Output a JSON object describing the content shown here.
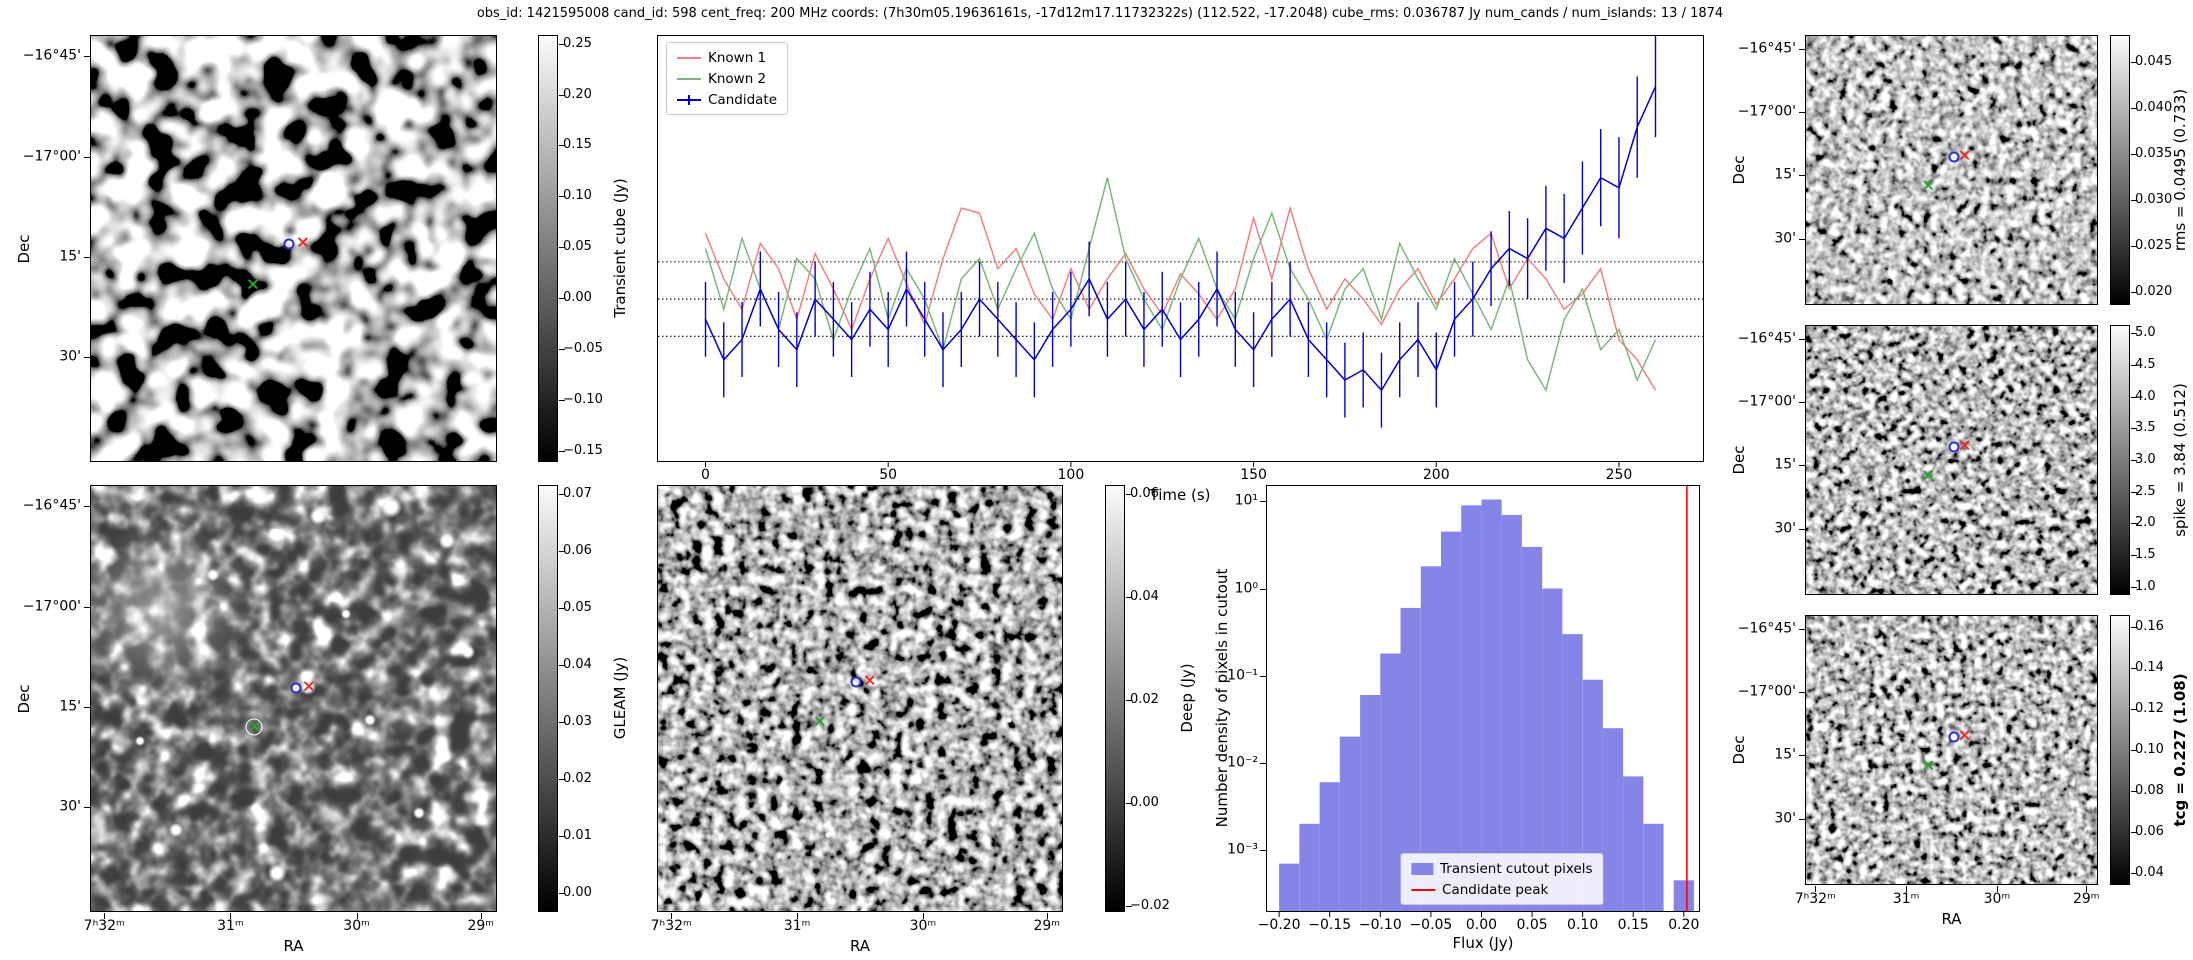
{
  "title": "obs_id: 1421595008 cand_id: 598 cent_freq: 200 MHz coords: (7h30m05.19636161s, -17d12m17.11732322s) (112.522, -17.2048) cube_rms: 0.036787 Jy num_cands / num_islands: 13 / 1874",
  "axes": {
    "dec_label": "Dec",
    "ra_label": "RA",
    "dec_ticks": [
      "−16°45'",
      "−17°00'",
      "15'",
      "30'"
    ],
    "ra_ticks": [
      "7ʰ32ᵐ",
      "31ᵐ",
      "30ᵐ",
      "29ᵐ"
    ]
  },
  "colorbars": {
    "transient": {
      "label": "Transient cube (Jy)",
      "ticks": [
        "0.25",
        "0.20",
        "0.15",
        "0.10",
        "0.05",
        "0.00",
        "−0.05",
        "−0.10",
        "−0.15"
      ]
    },
    "gleam": {
      "label": "GLEAM (Jy)",
      "ticks": [
        "0.07",
        "0.06",
        "0.05",
        "0.04",
        "0.03",
        "0.02",
        "0.01",
        "0.00"
      ]
    },
    "deep": {
      "label": "Deep (Jy)",
      "ticks": [
        "0.06",
        "0.04",
        "0.02",
        "0.00",
        "−0.02"
      ]
    },
    "rms": {
      "label": "rms = 0.0495 (0.733)",
      "ticks": [
        "0.045",
        "0.040",
        "0.035",
        "0.030",
        "0.025",
        "0.020"
      ]
    },
    "spike": {
      "label": "spike = 3.84 (0.512)",
      "ticks": [
        "5.0",
        "4.5",
        "4.0",
        "3.5",
        "3.0",
        "2.5",
        "2.0",
        "1.5",
        "1.0"
      ]
    },
    "tcg": {
      "label": "tcg = 0.227 (1.08)",
      "ticks": [
        "0.16",
        "0.14",
        "0.12",
        "0.10",
        "0.08",
        "0.06",
        "0.04"
      ]
    }
  },
  "markers": {
    "candidate_color": "#2b35c8",
    "known1_color": "#e03127",
    "known2_color": "#2fa32f"
  },
  "chart_data": [
    {
      "type": "line",
      "title": "",
      "xlabel": "Time (s)",
      "ylabel": "",
      "xlim": [
        -13,
        273
      ],
      "ylim": [
        -0.16,
        0.26
      ],
      "x_ticks": [
        0,
        50,
        100,
        150,
        200,
        250
      ],
      "hlines": [
        0.036787,
        0,
        -0.036787
      ],
      "legend_position": "upper left",
      "series": [
        {
          "name": "Known 1",
          "color": "#f08080",
          "x": [
            0,
            5,
            10,
            15,
            20,
            25,
            30,
            35,
            40,
            45,
            50,
            55,
            60,
            65,
            70,
            75,
            80,
            85,
            90,
            95,
            100,
            105,
            110,
            115,
            120,
            125,
            130,
            135,
            140,
            145,
            150,
            155,
            160,
            165,
            170,
            175,
            180,
            185,
            190,
            195,
            200,
            205,
            210,
            215,
            220,
            225,
            230,
            235,
            240,
            245,
            250,
            255,
            260
          ],
          "values": [
            0.065,
            0.02,
            -0.01,
            0.055,
            0.03,
            -0.02,
            0.045,
            0.01,
            -0.03,
            0.02,
            0.06,
            0.015,
            -0.025,
            0.04,
            0.09,
            0.085,
            0.03,
            0.05,
            0.005,
            -0.02,
            0.03,
            -0.01,
            0.02,
            0.045,
            0.01,
            -0.015,
            0.025,
            0.005,
            -0.02,
            0.01,
            0.08,
            0.02,
            0.09,
            0.03,
            -0.01,
            0.02,
            0.0,
            -0.025,
            0.01,
            0.03,
            -0.005,
            0.02,
            0.05,
            0.065,
            0.01,
            0.04,
            0.02,
            -0.01,
            0.005,
            0.03,
            -0.04,
            -0.06,
            -0.09
          ]
        },
        {
          "name": "Known 2",
          "color": "#7cb87c",
          "x": [
            0,
            5,
            10,
            15,
            20,
            25,
            30,
            35,
            40,
            45,
            50,
            55,
            60,
            65,
            70,
            75,
            80,
            85,
            90,
            95,
            100,
            105,
            110,
            115,
            120,
            125,
            130,
            135,
            140,
            145,
            150,
            155,
            160,
            165,
            170,
            175,
            180,
            185,
            190,
            195,
            200,
            205,
            210,
            215,
            220,
            225,
            230,
            235,
            240,
            245,
            250,
            255,
            260
          ],
          "values": [
            0.05,
            -0.01,
            0.06,
            0.01,
            -0.03,
            0.04,
            0.02,
            -0.04,
            0.01,
            0.05,
            -0.02,
            0.03,
            0.0,
            -0.05,
            0.02,
            0.04,
            -0.01,
            0.03,
            0.065,
            0.01,
            -0.02,
            0.05,
            0.12,
            0.04,
            0.0,
            -0.03,
            0.02,
            0.06,
            0.01,
            -0.02,
            0.04,
            0.085,
            0.03,
            0.0,
            -0.04,
            0.01,
            0.03,
            -0.02,
            0.055,
            0.02,
            -0.01,
            0.04,
            0.005,
            -0.03,
            0.02,
            -0.06,
            -0.09,
            -0.02,
            0.01,
            -0.05,
            -0.03,
            -0.08,
            -0.04
          ]
        },
        {
          "name": "Candidate",
          "color": "#0000cd",
          "x": [
            0,
            5,
            10,
            15,
            20,
            25,
            30,
            35,
            40,
            45,
            50,
            55,
            60,
            65,
            70,
            75,
            80,
            85,
            90,
            95,
            100,
            105,
            110,
            115,
            120,
            125,
            130,
            135,
            140,
            145,
            150,
            155,
            160,
            165,
            170,
            175,
            180,
            185,
            190,
            195,
            200,
            205,
            210,
            215,
            220,
            225,
            230,
            235,
            240,
            245,
            250,
            255,
            260
          ],
          "values": [
            -0.02,
            -0.06,
            -0.04,
            0.01,
            -0.03,
            -0.05,
            0.0,
            -0.02,
            -0.04,
            -0.01,
            -0.03,
            0.01,
            -0.02,
            -0.05,
            -0.03,
            0.0,
            -0.02,
            -0.04,
            -0.06,
            -0.03,
            -0.01,
            0.02,
            -0.02,
            0.0,
            -0.03,
            -0.01,
            -0.04,
            -0.02,
            0.01,
            -0.03,
            -0.05,
            -0.02,
            0.0,
            -0.04,
            -0.06,
            -0.08,
            -0.07,
            -0.09,
            -0.06,
            -0.04,
            -0.07,
            -0.02,
            0.0,
            0.03,
            0.05,
            0.04,
            0.07,
            0.06,
            0.09,
            0.12,
            0.11,
            0.17,
            0.21
          ],
          "errors": [
            0.037,
            0.037,
            0.037,
            0.037,
            0.037,
            0.037,
            0.037,
            0.037,
            0.037,
            0.037,
            0.037,
            0.037,
            0.037,
            0.037,
            0.037,
            0.037,
            0.037,
            0.037,
            0.037,
            0.037,
            0.037,
            0.037,
            0.037,
            0.037,
            0.037,
            0.037,
            0.037,
            0.037,
            0.037,
            0.037,
            0.037,
            0.037,
            0.037,
            0.037,
            0.037,
            0.037,
            0.037,
            0.037,
            0.037,
            0.037,
            0.037,
            0.037,
            0.037,
            0.037,
            0.037,
            0.04,
            0.042,
            0.044,
            0.046,
            0.048,
            0.05,
            0.05,
            0.05
          ]
        }
      ]
    },
    {
      "type": "bar",
      "title": "",
      "xlabel": "Flux (Jy)",
      "ylabel": "Number density of pixels in cutout",
      "scale": "log-y",
      "xlim": [
        -0.212,
        0.215
      ],
      "ylim": [
        0.0002,
        15
      ],
      "x_ticks": [
        -0.2,
        -0.15,
        -0.1,
        -0.05,
        0.0,
        0.05,
        0.1,
        0.15,
        0.2
      ],
      "x_tick_labels": [
        "−0.20",
        "−0.15",
        "−0.10",
        "−0.05",
        "0.00",
        "0.05",
        "0.10",
        "0.15",
        "0.20"
      ],
      "y_ticks": [
        "10¹",
        "10⁰",
        "10⁻¹",
        "10⁻²",
        "10⁻³"
      ],
      "y_tick_values": [
        10,
        1,
        0.1,
        0.01,
        0.001
      ],
      "bin_width": 0.02,
      "bin_centers": [
        -0.19,
        -0.17,
        -0.15,
        -0.13,
        -0.11,
        -0.09,
        -0.07,
        -0.05,
        -0.03,
        -0.01,
        0.01,
        0.03,
        0.05,
        0.07,
        0.09,
        0.11,
        0.13,
        0.15,
        0.17,
        0.2
      ],
      "values": [
        0.0007,
        0.002,
        0.006,
        0.02,
        0.06,
        0.18,
        0.6,
        1.8,
        4.5,
        9.0,
        10.5,
        7.0,
        3.0,
        1.0,
        0.3,
        0.09,
        0.025,
        0.007,
        0.002,
        0.00045
      ],
      "candidate_peak": 0.203,
      "bar_color": "#8585e8",
      "line_color": "#ff0000",
      "legend": [
        "Transient cutout pixels",
        "Candidate peak"
      ]
    }
  ]
}
